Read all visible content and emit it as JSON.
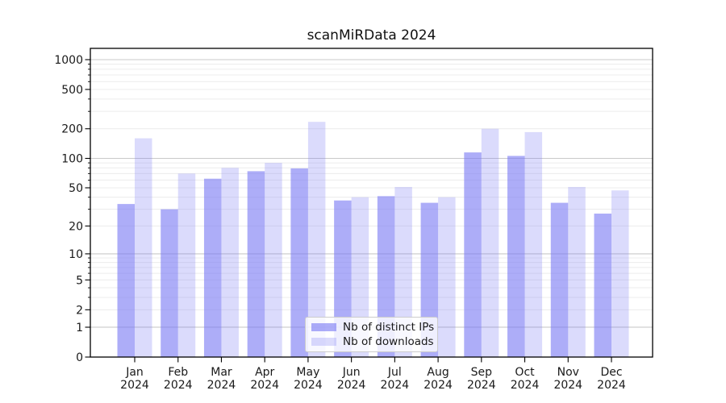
{
  "chart_data": {
    "type": "bar",
    "title": "scanMiRData 2024",
    "categories": [
      "Jan",
      "Feb",
      "Mar",
      "Apr",
      "May",
      "Jun",
      "Jul",
      "Aug",
      "Sep",
      "Oct",
      "Nov",
      "Dec"
    ],
    "category_year": "2024",
    "series": [
      {
        "name": "Nb of distinct IPs",
        "color": "#7a7af4",
        "opacity": 0.62,
        "values": [
          34,
          30,
          62,
          74,
          79,
          37,
          41,
          35,
          115,
          106,
          35,
          27
        ]
      },
      {
        "name": "Nb of downloads",
        "color": "#7a7af4",
        "opacity": 0.27,
        "values": [
          160,
          70,
          80,
          90,
          235,
          40,
          51,
          40,
          200,
          185,
          51,
          47
        ]
      }
    ],
    "y_scale": "log1p",
    "y_ticks": [
      0,
      1,
      2,
      5,
      10,
      20,
      50,
      100,
      200,
      500,
      1000
    ],
    "y_minor_gridlines": [
      2,
      3,
      4,
      5,
      6,
      7,
      8,
      9,
      20,
      30,
      40,
      50,
      60,
      70,
      80,
      90,
      200,
      300,
      400,
      500,
      600,
      700,
      800,
      900
    ],
    "y_major_gridlines": [
      1,
      10,
      100,
      1000
    ],
    "ylim": [
      0,
      1200
    ],
    "xlabel": "",
    "ylabel": "",
    "grid": true,
    "legend_position": "lower center",
    "axis_color": "#000000",
    "tick_label_color": "#1a1a1a",
    "major_grid_color": "#c9c9c9",
    "minor_grid_color": "#ececec"
  }
}
